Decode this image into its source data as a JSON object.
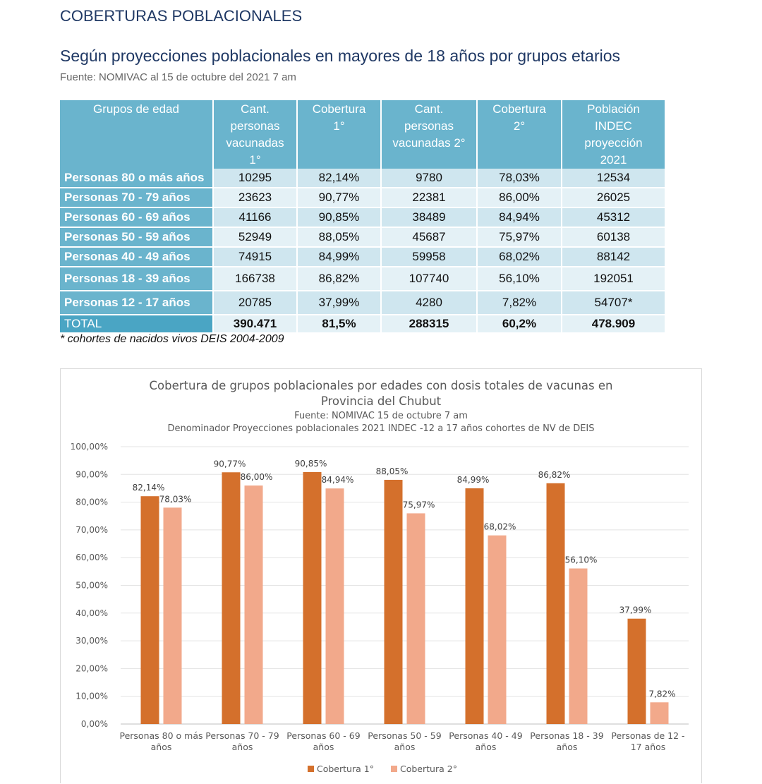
{
  "section_title": "COBERTURAS POBLACIONALES",
  "subtitle": "Según proyecciones poblacionales en mayores de 18 años por grupos etarios",
  "source": "Fuente: NOMIVAC al 15 de octubre del 2021 7 am",
  "table": {
    "headers": [
      "Grupos de edad",
      "Cant.\npersonas\nvacunadas\n1°",
      "Cobertura\n1°",
      "Cant.\npersonas\nvacunadas 2°",
      "Cobertura\n2°",
      "Población\nINDEC\nproyección\n2021"
    ],
    "rows": [
      [
        "Personas 80 o más años",
        "10295",
        "82,14%",
        "9780",
        "78,03%",
        "12534"
      ],
      [
        "Personas 70 - 79 años",
        "23623",
        "90,77%",
        "22381",
        "86,00%",
        "26025"
      ],
      [
        "Personas 60 - 69 años",
        "41166",
        "90,85%",
        "38489",
        "84,94%",
        "45312"
      ],
      [
        "Personas 50 - 59 años",
        "52949",
        "88,05%",
        "45687",
        "75,97%",
        "60138"
      ],
      [
        "Personas 40 - 49 años",
        "74915",
        "84,99%",
        "59958",
        "68,02%",
        "88142"
      ],
      [
        "Personas 18 - 39 años",
        "166738",
        "86,82%",
        "107740",
        "56,10%",
        "192051"
      ],
      [
        "Personas 12 - 17 años",
        "20785",
        "37,99%",
        "4280",
        "7,82%",
        "54707*"
      ]
    ],
    "total": [
      "TOTAL",
      "390.471",
      "81,5%",
      "288315",
      "60,2%",
      "478.909"
    ]
  },
  "table_note": "* cohortes de nacidos vivos DEIS 2004-2009",
  "chart_data": {
    "type": "bar",
    "title": "Cobertura de grupos poblacionales por edades con dosis totales de vacunas en Provincia del Chubut",
    "subtitle_lines": [
      "Fuente: NOMIVAC 15 de octubre 7 am",
      "Denominador Proyecciones poblacionales 2021 INDEC -12 a 17 años cohortes de NV de DEIS"
    ],
    "categories": [
      "Personas 80 o más años",
      "Personas 70 - 79 años",
      "Personas 60 - 69 años",
      "Personas 50 - 59 años",
      "Personas 40 - 49 años",
      "Personas 18 - 39 años",
      "Personas de 12 - 17 años"
    ],
    "series": [
      {
        "name": "Cobertura 1°",
        "color": "#d4702c",
        "values": [
          82.14,
          90.77,
          90.85,
          88.05,
          84.99,
          86.82,
          37.99
        ]
      },
      {
        "name": "Cobertura 2°",
        "color": "#f2a98b",
        "values": [
          78.03,
          86.0,
          84.94,
          75.97,
          68.02,
          56.1,
          7.82
        ]
      }
    ],
    "data_labels": [
      [
        "82,14%",
        "90,77%",
        "90,85%",
        "88,05%",
        "84,99%",
        "86,82%",
        "37,99%"
      ],
      [
        "78,03%",
        "86,00%",
        "84,94%",
        "75,97%",
        "68,02%",
        "56,10%",
        "7,82%"
      ]
    ],
    "ylim": [
      0,
      100
    ],
    "yticks": [
      "0,00%",
      "10,00%",
      "20,00%",
      "30,00%",
      "40,00%",
      "50,00%",
      "60,00%",
      "70,00%",
      "80,00%",
      "90,00%",
      "100,00%"
    ],
    "grid": true,
    "legend_position": "bottom",
    "xlabel": "",
    "ylabel": ""
  }
}
